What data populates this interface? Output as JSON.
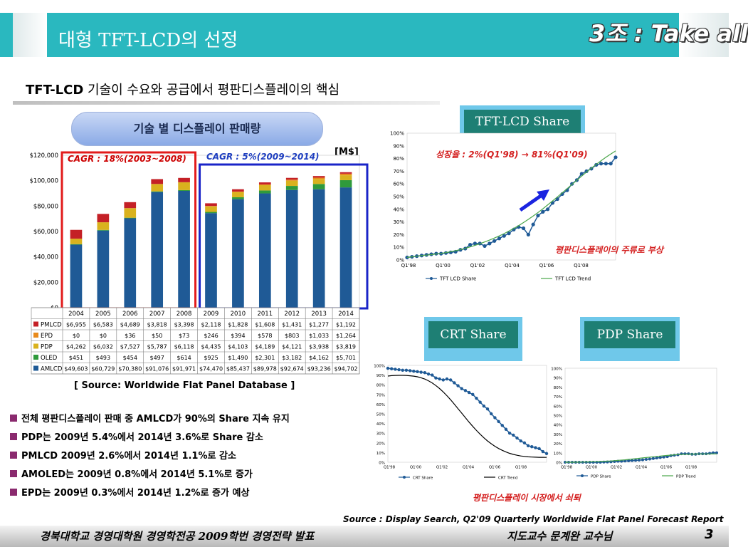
{
  "slide": {
    "title": "대형 TFT-LCD의 선정",
    "team_label": "3조 : Take all",
    "headline_bold": "TFT-LCD",
    "headline_rest": " 기술이 수요와 공급에서 평판디스플레이의 핵심",
    "pill_label": "기술 별 디스플레이 판매량",
    "unit": "[M$]",
    "source_left": "[ Source: Worldwide Flat Panel Database ]",
    "bullets": [
      "전체 평판디스플레이 판매 중 AMLCD가 90%의 Share 지속 유지",
      "PDP는 2009년 5.4%에서 2014년 3.6%로 Share 감소",
      "PMLCD 2009년 2.6%에서 2014년 1.1%로 감소",
      "AMOLED는  2009년 0.8%에서 2014년 5.1%로 증가",
      "EPD는 2009년 0.3%에서 2014년 1.2%로 증가 예상"
    ],
    "tft_share_label": "TFT-LCD Share",
    "crt_share_label": "CRT Share",
    "pdp_share_label": "PDP Share",
    "tft_growth_note": "성장율 : 2%(Q1'98) → 81%(Q1'09)",
    "tft_note": "평판디스플레이의 주류로 부상",
    "decline_note": "평판디스플레이 시장에서 쇠퇴",
    "source_right": "Source : Display Search, Q2'09 Quarterly Worldwide Flat Panel Forecast Report",
    "footer_left": "경북대학교 경영대학원  경영학전공 2009학번     경영전략 발표",
    "footer_mid": "지도교수   문계완 교수님",
    "page_number": "3",
    "colors": {
      "teal": "#2ab8bf",
      "dark_teal": "#1e7f74",
      "accent_red": "#d42020",
      "accent_blue": "#1f3fc0"
    },
    "icons": [
      "blue-arrow-icon",
      "bullet-square-icon"
    ]
  },
  "chart_data": [
    {
      "type": "bar",
      "stacked": true,
      "categories": [
        "2004",
        "2005",
        "2006",
        "2007",
        "2008",
        "2009",
        "2010",
        "2011",
        "2012",
        "2013",
        "2014"
      ],
      "y_ticks": [
        "$0",
        "$20,000",
        "$40,000",
        "$60,000",
        "$80,000",
        "$100,000",
        "$120,000"
      ],
      "ylim": [
        0,
        120000
      ],
      "series": [
        {
          "name": "AMLCD",
          "color": "#1f5a96",
          "values": [
            49603,
            60729,
            70380,
            91076,
            91971,
            74470,
            85437,
            89978,
            92674,
            93236,
            94702
          ],
          "labels": [
            "$49,603",
            "$60,729",
            "$70,380",
            "$91,076",
            "$91,971",
            "$74,470",
            "$85,437",
            "$89,978",
            "$92,674",
            "$93,236",
            "$94,702"
          ]
        },
        {
          "name": "OLED",
          "color": "#2f9a3c",
          "values": [
            451,
            493,
            454,
            497,
            614,
            925,
            1490,
            2301,
            3182,
            4162,
            5701
          ],
          "labels": [
            "$451",
            "$493",
            "$454",
            "$497",
            "$614",
            "$925",
            "$1,490",
            "$2,301",
            "$3,182",
            "$4,162",
            "$5,701"
          ]
        },
        {
          "name": "PDP",
          "color": "#d9b21e",
          "values": [
            4262,
            6032,
            7527,
            5787,
            6118,
            4435,
            4103,
            4189,
            4121,
            3938,
            3819
          ],
          "labels": [
            "$4,262",
            "$6,032",
            "$7,527",
            "$5,787",
            "$6,118",
            "$4,435",
            "$4,103",
            "$4,189",
            "$4,121",
            "$3,938",
            "$3,819"
          ]
        },
        {
          "name": "EPD",
          "color": "#e88a1c",
          "values": [
            0,
            0,
            36,
            50,
            73,
            246,
            394,
            578,
            803,
            1033,
            1264
          ],
          "labels": [
            "$0",
            "$0",
            "$36",
            "$50",
            "$73",
            "$246",
            "$394",
            "$578",
            "$803",
            "$1,033",
            "$1,264"
          ]
        },
        {
          "name": "PMLCD",
          "color": "#c42026",
          "values": [
            6955,
            6583,
            4689,
            3818,
            3398,
            2118,
            1828,
            1608,
            1431,
            1277,
            1192
          ],
          "labels": [
            "$6,955",
            "$6,583",
            "$4,689",
            "$3,818",
            "$3,398",
            "$2,118",
            "$1,828",
            "$1,608",
            "$1,431",
            "$1,277",
            "$1,192"
          ]
        }
      ],
      "table_row_order": [
        "PMLCD",
        "EPD",
        "PDP",
        "OLED",
        "AMLCD"
      ],
      "annotations": [
        "CAGR : 18%(2003~2008)",
        "CAGR : 5%(2009~2014)"
      ]
    },
    {
      "type": "line",
      "name": "tft",
      "x_ticks": [
        "Q1'98",
        "Q1'00",
        "Q1'02",
        "Q1'04",
        "Q1'06",
        "Q1'08"
      ],
      "y_ticks": [
        "0%",
        "10%",
        "20%",
        "30%",
        "40%",
        "50%",
        "60%",
        "70%",
        "80%",
        "90%",
        "100%"
      ],
      "ylim": [
        0,
        100
      ],
      "series": [
        {
          "name": "TFT LCD Share",
          "color": "#1f5a96",
          "marker": "circle",
          "values": [
            2,
            2.5,
            3,
            3.5,
            4,
            4.5,
            5,
            5,
            5.5,
            6,
            6.5,
            8,
            9,
            12,
            13,
            13,
            11,
            13,
            15,
            17,
            19,
            21,
            24,
            26,
            25,
            20,
            28,
            35,
            38,
            40,
            45,
            48,
            52,
            55,
            60,
            63,
            68,
            70,
            72,
            75,
            76,
            76,
            76,
            81
          ]
        },
        {
          "name": "TFT LCD Trend",
          "color": "#4aa64a",
          "marker": "none",
          "values": [
            2,
            2.5,
            3,
            3.4,
            3.8,
            4.2,
            4.7,
            5.2,
            5.8,
            6.5,
            7.3,
            8.2,
            9.2,
            10.3,
            11.5,
            12.8,
            14.2,
            15.7,
            17.3,
            19,
            20.8,
            22.8,
            24.9,
            27.1,
            29.5,
            32,
            34.7,
            37.5,
            40.4,
            43.5,
            46.6,
            49.8,
            53,
            56.3,
            59.6,
            62.9,
            66.1,
            69.3,
            72.4,
            75.4,
            78.3,
            81,
            83.6,
            86
          ]
        }
      ],
      "legend": "bottom"
    },
    {
      "type": "line",
      "name": "crt",
      "x_ticks": [
        "Q1'98",
        "Q1'00",
        "Q1'02",
        "Q1'04",
        "Q1'06",
        "Q1'08"
      ],
      "y_ticks": [
        "0%",
        "10%",
        "20%",
        "30%",
        "40%",
        "50%",
        "60%",
        "70%",
        "80%",
        "90%",
        "100%"
      ],
      "ylim": [
        0,
        100
      ],
      "series": [
        {
          "name": "CRT Share",
          "color": "#1f5a96",
          "marker": "circle",
          "values": [
            97,
            96.5,
            96,
            95.5,
            95,
            95,
            94.5,
            94,
            93.5,
            93,
            92.5,
            91,
            90,
            87,
            86,
            85,
            86,
            85,
            82,
            79,
            76,
            74,
            72,
            70,
            66,
            62,
            58,
            55,
            50,
            46,
            42,
            38,
            34,
            30,
            28,
            25,
            22,
            20,
            17,
            16,
            15,
            14,
            11,
            9
          ]
        },
        {
          "name": "CRT Trend",
          "color": "#000000",
          "marker": "none",
          "values": [
            89,
            89.4,
            89.6,
            89.7,
            89.7,
            89.6,
            89.3,
            88.9,
            88.2,
            87.2,
            85.9,
            84.1,
            81.9,
            79.2,
            76.1,
            72.6,
            68.7,
            64.5,
            60,
            55.4,
            50.7,
            46,
            41.4,
            37,
            32.8,
            28.9,
            25.3,
            22,
            19.1,
            16.5,
            14.2,
            12.3,
            10.6,
            9.2,
            8.1,
            7.2,
            6.5,
            6,
            5.6,
            5.4,
            5.2,
            5.1,
            5.05,
            5
          ]
        }
      ],
      "legend": "bottom"
    },
    {
      "type": "line",
      "name": "pdp",
      "x_ticks": [
        "Q1'98",
        "Q1'00",
        "Q1'02",
        "Q1'04",
        "Q1'06",
        "Q1'08"
      ],
      "y_ticks": [
        "0%",
        "10%",
        "20%",
        "30%",
        "40%",
        "50%",
        "60%",
        "70%",
        "80%",
        "90%",
        "100%"
      ],
      "ylim": [
        0,
        100
      ],
      "series": [
        {
          "name": "PDP Share",
          "color": "#1f5a96",
          "marker": "circle",
          "values": [
            0,
            0,
            0,
            0,
            0,
            0,
            0,
            0,
            0,
            0,
            0,
            0.2,
            0.3,
            0.5,
            0.8,
            1,
            1,
            1.3,
            1.5,
            1.8,
            2,
            2.3,
            2.6,
            3,
            3.4,
            4,
            4.5,
            5,
            5.5,
            6,
            7,
            7.5,
            8,
            9,
            9,
            9,
            8.5,
            8.5,
            9,
            9,
            9,
            9.5,
            10,
            10
          ]
        },
        {
          "name": "PDP Trend",
          "color": "#4aa64a",
          "marker": "none",
          "values": [
            0,
            0,
            0,
            0.1,
            0.1,
            0.2,
            0.3,
            0.4,
            0.5,
            0.6,
            0.8,
            1,
            1.2,
            1.4,
            1.7,
            2,
            2.3,
            2.6,
            3,
            3.4,
            3.8,
            4.2,
            4.6,
            5,
            5.4,
            5.8,
            6.2,
            6.6,
            7,
            7.3,
            7.6,
            7.9,
            8.1,
            8.3,
            8.5,
            8.6,
            8.7,
            8.8,
            8.85,
            8.9,
            8.9,
            8.9,
            8.9,
            8.9
          ]
        }
      ],
      "legend": "bottom"
    }
  ]
}
